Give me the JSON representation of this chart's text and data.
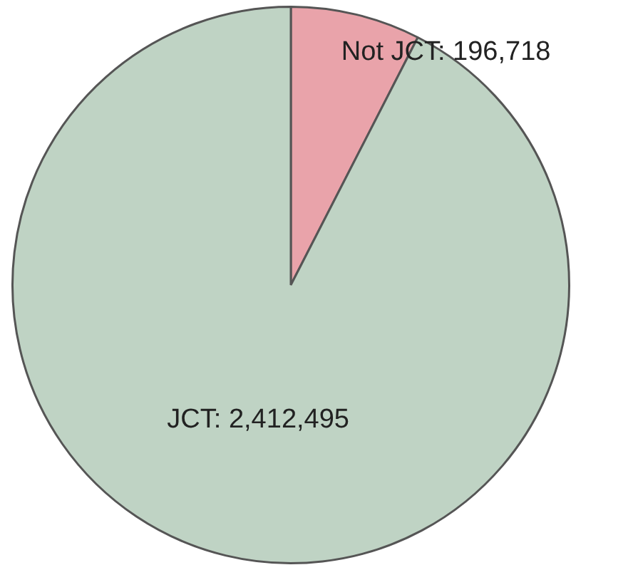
{
  "chart_data": {
    "type": "pie",
    "categories": [
      "Not JCT",
      "JCT"
    ],
    "values": [
      196718,
      2412495
    ],
    "value_labels": [
      "196,718",
      "2,412,495"
    ],
    "colors": [
      "#e9a3aa",
      "#bfd3c4"
    ],
    "legend": false
  }
}
